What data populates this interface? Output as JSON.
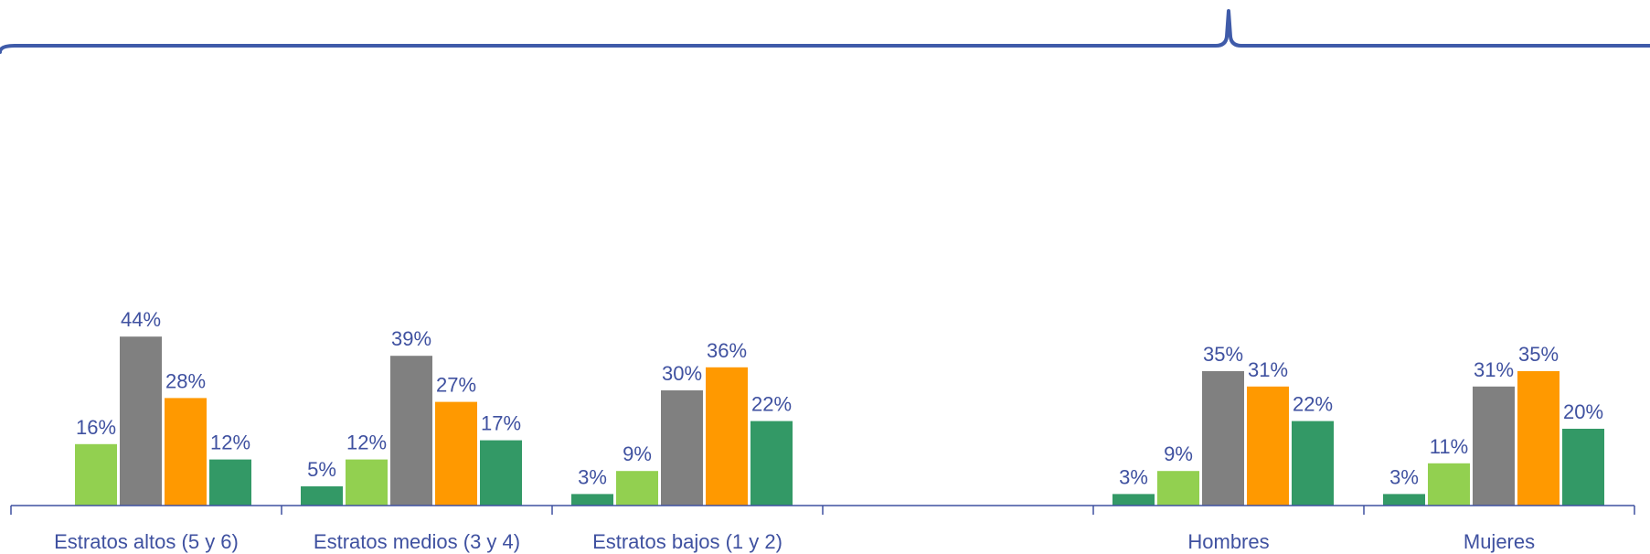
{
  "colors": {
    "text": "#3F51A0",
    "axis": "#3F51A0",
    "brace": "#3F5BA9",
    "background": "#ffffff"
  },
  "chart_data": {
    "type": "bar",
    "categories": [
      "Estratos altos (5 y 6)",
      "Estratos medios (3 y 4)",
      "Estratos bajos (1 y 2)",
      "",
      "Hombres",
      "Mujeres"
    ],
    "series": [
      {
        "color": "#339966",
        "values": [
          null,
          5,
          3,
          null,
          3,
          3
        ]
      },
      {
        "color": "#92D050",
        "values": [
          16,
          12,
          9,
          null,
          9,
          11
        ]
      },
      {
        "color": "#808080",
        "values": [
          44,
          39,
          30,
          null,
          35,
          31
        ]
      },
      {
        "color": "#FF9900",
        "values": [
          28,
          27,
          36,
          null,
          31,
          35
        ]
      },
      {
        "color": "#339966",
        "values": [
          12,
          17,
          22,
          null,
          22,
          20
        ]
      }
    ],
    "value_suffix": "%",
    "ylim": [
      0,
      50
    ],
    "grid": false,
    "legend": "none",
    "title": "",
    "xlabel": "",
    "ylabel": ""
  }
}
